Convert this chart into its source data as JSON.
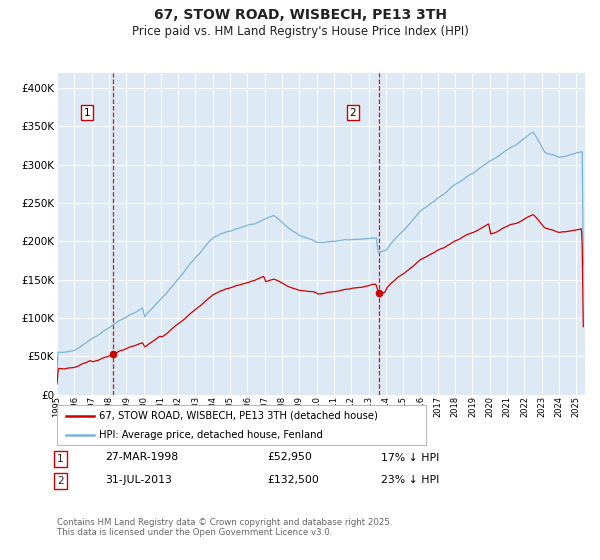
{
  "title": "67, STOW ROAD, WISBECH, PE13 3TH",
  "subtitle": "Price paid vs. HM Land Registry's House Price Index (HPI)",
  "legend_line1": "67, STOW ROAD, WISBECH, PE13 3TH (detached house)",
  "legend_line2": "HPI: Average price, detached house, Fenland",
  "annotation1_date": "27-MAR-1998",
  "annotation1_price": "£52,950",
  "annotation1_hpi": "17% ↓ HPI",
  "annotation2_date": "31-JUL-2013",
  "annotation2_price": "£132,500",
  "annotation2_hpi": "23% ↓ HPI",
  "sale1_year": 1998.23,
  "sale1_value": 52950,
  "sale2_year": 2013.58,
  "sale2_value": 132500,
  "xmin": 1995.0,
  "xmax": 2025.5,
  "ymin": 0,
  "ymax": 420000,
  "yticks": [
    0,
    50000,
    100000,
    150000,
    200000,
    250000,
    300000,
    350000,
    400000
  ],
  "ytick_labels": [
    "£0",
    "£50K",
    "£100K",
    "£150K",
    "£200K",
    "£250K",
    "£300K",
    "£350K",
    "£400K"
  ],
  "hpi_color": "#7ab4d8",
  "price_color": "#cc0000",
  "dashed_color": "#cc0000",
  "bg_color": "#ddeaf5",
  "grid_color": "#ffffff",
  "outer_bg": "#ffffff",
  "footer_text": "Contains HM Land Registry data © Crown copyright and database right 2025.\nThis data is licensed under the Open Government Licence v3.0.",
  "title_fontsize": 10,
  "subtitle_fontsize": 8.5
}
